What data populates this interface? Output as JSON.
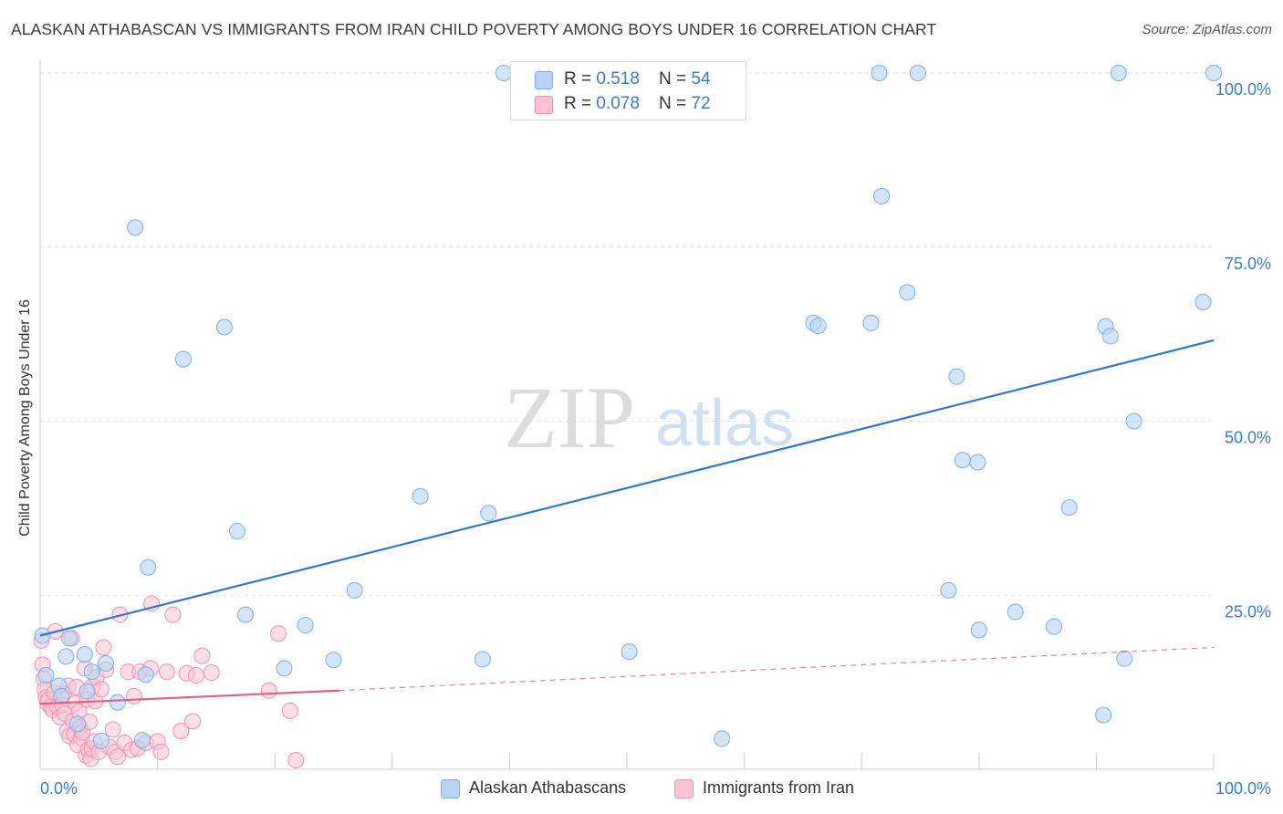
{
  "title": "ALASKAN ATHABASCAN VS IMMIGRANTS FROM IRAN CHILD POVERTY AMONG BOYS UNDER 16 CORRELATION CHART",
  "source": "Source: ZipAtlas.com",
  "watermark": {
    "zip": "ZIP",
    "atlas": "atlas"
  },
  "legend": {
    "rows": [
      {
        "r_label": "R = ",
        "r_value": "0.518",
        "n_label": "N = ",
        "n_value": "54"
      },
      {
        "r_label": "R = ",
        "r_value": "0.078",
        "n_label": "N = ",
        "n_value": "72"
      }
    ]
  },
  "bottom_legend": [
    "Alaskan Athabascans",
    "Immigrants from Iran"
  ],
  "colors": {
    "blue_fill": "#b8d3f5",
    "blue_stroke": "#7faee6",
    "blue_line": "#2f78d0",
    "pink_fill": "#f9c3d3",
    "pink_stroke": "#ee93b0",
    "pink_line": "#e2628f",
    "axis_text": "#3d7cc9",
    "grid": "#e2e2e2"
  },
  "chart_data": {
    "type": "scatter",
    "title": "ALASKAN ATHABASCAN VS IMMIGRANTS FROM IRAN CHILD POVERTY AMONG BOYS UNDER 16 CORRELATION CHART",
    "xlabel": "",
    "ylabel": "Child Poverty Among Boys Under 16",
    "xlim": [
      0,
      100
    ],
    "ylim": [
      0,
      100
    ],
    "x_ticks": [
      "0.0%",
      "100.0%"
    ],
    "y_ticks": [
      {
        "value": 25,
        "label": "25.0%"
      },
      {
        "value": 50,
        "label": "50.0%"
      },
      {
        "value": 75,
        "label": "75.0%"
      },
      {
        "value": 100,
        "label": "100.0%"
      }
    ],
    "grid": true,
    "legend_position": "top-center",
    "series": [
      {
        "name": "Alaskan Athabascans",
        "r": 0.518,
        "n": 54,
        "trend": {
          "x": [
            0,
            100
          ],
          "y": [
            19.2,
            61.6
          ],
          "extrapolated_to": 100
        },
        "points": [
          [
            0.2,
            19.2
          ],
          [
            0.5,
            13.5
          ],
          [
            1.6,
            12.0
          ],
          [
            1.8,
            10.5
          ],
          [
            2.2,
            16.2
          ],
          [
            2.5,
            18.8
          ],
          [
            3.2,
            6.5
          ],
          [
            3.8,
            16.5
          ],
          [
            4.0,
            11.2
          ],
          [
            4.4,
            14.0
          ],
          [
            5.6,
            15.2
          ],
          [
            5.2,
            4.1
          ],
          [
            6.6,
            9.6
          ],
          [
            8.1,
            77.8
          ],
          [
            8.7,
            4.2
          ],
          [
            9.0,
            13.6
          ],
          [
            9.2,
            29.0
          ],
          [
            12.2,
            58.9
          ],
          [
            15.7,
            63.5
          ],
          [
            16.8,
            34.2
          ],
          [
            17.5,
            22.2
          ],
          [
            20.8,
            14.5
          ],
          [
            22.6,
            20.7
          ],
          [
            25.0,
            15.7
          ],
          [
            26.8,
            25.7
          ],
          [
            32.4,
            39.2
          ],
          [
            37.7,
            15.8
          ],
          [
            38.2,
            36.8
          ],
          [
            39.5,
            100.0
          ],
          [
            50.2,
            16.9
          ],
          [
            58.1,
            4.4
          ],
          [
            65.9,
            64.1
          ],
          [
            66.3,
            63.7
          ],
          [
            70.8,
            64.1
          ],
          [
            71.5,
            100.0
          ],
          [
            71.7,
            82.3
          ],
          [
            73.9,
            68.5
          ],
          [
            74.8,
            100.0
          ],
          [
            77.4,
            25.7
          ],
          [
            78.1,
            56.4
          ],
          [
            78.6,
            44.4
          ],
          [
            79.9,
            44.1
          ],
          [
            80.0,
            20.0
          ],
          [
            83.1,
            22.6
          ],
          [
            86.4,
            20.5
          ],
          [
            87.7,
            37.6
          ],
          [
            90.6,
            7.8
          ],
          [
            90.8,
            63.6
          ],
          [
            91.2,
            62.2
          ],
          [
            91.9,
            100.0
          ],
          [
            92.4,
            15.9
          ],
          [
            93.2,
            50.0
          ],
          [
            99.1,
            67.1
          ],
          [
            100.0,
            100.0
          ]
        ]
      },
      {
        "name": "Immigrants from Iran",
        "r": 0.078,
        "n": 72,
        "trend": {
          "x": [
            0,
            25.5
          ],
          "y": [
            9.4,
            11.3
          ],
          "dashed_to": {
            "x": 100,
            "y": 17.5
          }
        },
        "points": [
          [
            0.1,
            18.5
          ],
          [
            0.2,
            15.0
          ],
          [
            0.3,
            13.0
          ],
          [
            0.4,
            11.5
          ],
          [
            0.5,
            10.3
          ],
          [
            0.6,
            9.5
          ],
          [
            0.7,
            10.0
          ],
          [
            0.9,
            9.0
          ],
          [
            1.1,
            8.5
          ],
          [
            1.2,
            11.0
          ],
          [
            1.3,
            19.8
          ],
          [
            1.5,
            9.0
          ],
          [
            1.7,
            7.5
          ],
          [
            1.9,
            9.2
          ],
          [
            2.0,
            10.8
          ],
          [
            2.1,
            8.0
          ],
          [
            2.3,
            5.5
          ],
          [
            2.4,
            12.0
          ],
          [
            2.5,
            4.8
          ],
          [
            2.7,
            18.8
          ],
          [
            2.8,
            7.0
          ],
          [
            2.9,
            5.0
          ],
          [
            3.0,
            9.5
          ],
          [
            3.1,
            11.8
          ],
          [
            3.2,
            3.5
          ],
          [
            3.3,
            8.3
          ],
          [
            3.4,
            6.0
          ],
          [
            3.5,
            4.5
          ],
          [
            3.6,
            5.3
          ],
          [
            3.8,
            14.5
          ],
          [
            3.9,
            2.0
          ],
          [
            4.0,
            10.0
          ],
          [
            4.1,
            2.8
          ],
          [
            4.2,
            6.8
          ],
          [
            4.3,
            1.5
          ],
          [
            4.4,
            3.0
          ],
          [
            4.5,
            12.0
          ],
          [
            4.6,
            4.0
          ],
          [
            4.7,
            9.8
          ],
          [
            4.8,
            13.2
          ],
          [
            5.0,
            2.5
          ],
          [
            5.2,
            11.5
          ],
          [
            5.4,
            17.5
          ],
          [
            5.6,
            14.3
          ],
          [
            5.9,
            3.2
          ],
          [
            6.2,
            5.7
          ],
          [
            6.4,
            2.5
          ],
          [
            6.6,
            1.8
          ],
          [
            6.8,
            22.2
          ],
          [
            7.2,
            3.8
          ],
          [
            7.5,
            14.0
          ],
          [
            7.8,
            2.8
          ],
          [
            8.0,
            10.5
          ],
          [
            8.3,
            3.0
          ],
          [
            8.5,
            14.0
          ],
          [
            9.0,
            3.8
          ],
          [
            9.4,
            14.5
          ],
          [
            9.5,
            23.8
          ],
          [
            10.0,
            4.0
          ],
          [
            10.3,
            2.5
          ],
          [
            10.8,
            14.0
          ],
          [
            11.3,
            22.2
          ],
          [
            12.0,
            5.5
          ],
          [
            12.5,
            13.8
          ],
          [
            13.0,
            6.9
          ],
          [
            13.3,
            13.5
          ],
          [
            13.8,
            16.3
          ],
          [
            14.6,
            13.9
          ],
          [
            19.5,
            11.3
          ],
          [
            20.3,
            19.5
          ],
          [
            21.3,
            8.4
          ],
          [
            21.8,
            1.3
          ]
        ]
      }
    ]
  }
}
